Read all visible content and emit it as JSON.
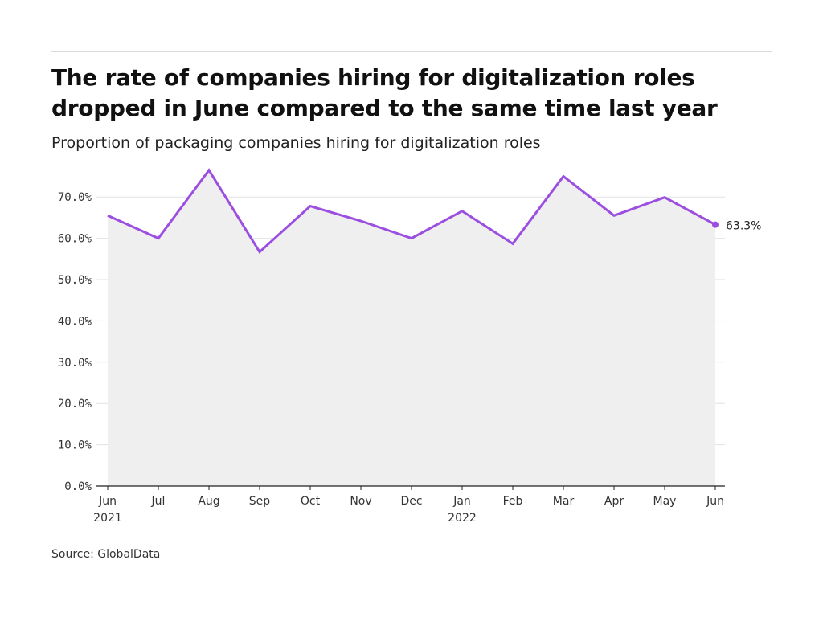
{
  "title": "The rate of companies hiring for digitalization roles dropped in June compared to the same time last year",
  "subtitle": "Proportion of packaging companies hiring for digitalization roles",
  "source": "Source: GlobalData",
  "chart_data": {
    "type": "area",
    "x": [
      "Jun 2021",
      "Jul 2021",
      "Aug 2021",
      "Sep 2021",
      "Oct 2021",
      "Nov 2021",
      "Dec 2021",
      "Jan 2022",
      "Feb 2022",
      "Mar 2022",
      "Apr 2022",
      "May 2022",
      "Jun 2022"
    ],
    "tick_labels": [
      {
        "month": "Jun",
        "year": "2021"
      },
      {
        "month": "Jul",
        "year": ""
      },
      {
        "month": "Aug",
        "year": ""
      },
      {
        "month": "Sep",
        "year": ""
      },
      {
        "month": "Oct",
        "year": ""
      },
      {
        "month": "Nov",
        "year": ""
      },
      {
        "month": "Dec",
        "year": ""
      },
      {
        "month": "Jan",
        "year": "2022"
      },
      {
        "month": "Feb",
        "year": ""
      },
      {
        "month": "Mar",
        "year": ""
      },
      {
        "month": "Apr",
        "year": ""
      },
      {
        "month": "May",
        "year": ""
      },
      {
        "month": "Jun",
        "year": ""
      }
    ],
    "series": [
      {
        "values": [
          65.5,
          60.0,
          76.5,
          56.7,
          67.8,
          64.2,
          60.0,
          66.6,
          58.7,
          75.0,
          65.5,
          69.9,
          63.3
        ],
        "color": "#9b4ee0"
      }
    ],
    "end_label": "63.3%",
    "y_ticks": [
      "0.0%",
      "10.0%",
      "20.0%",
      "30.0%",
      "40.0%",
      "50.0%",
      "60.0%",
      "70.0%"
    ],
    "ylim": [
      0,
      70
    ],
    "area_fill": "#efefef",
    "grid": true,
    "xlabel": "",
    "ylabel": ""
  }
}
